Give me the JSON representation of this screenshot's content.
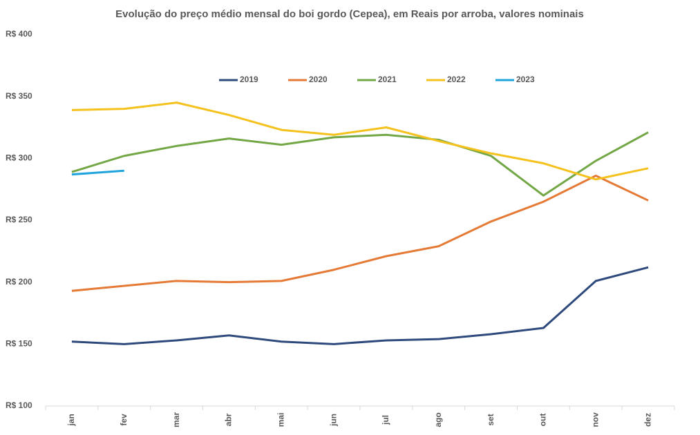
{
  "chart_data": {
    "type": "line",
    "title": "Evolução do preço médio mensal do boi gordo (Cepea), em Reais por arroba, valores nominais",
    "categories": [
      "jan",
      "fev",
      "mar",
      "abr",
      "mai",
      "jun",
      "jul",
      "ago",
      "set",
      "out",
      "nov",
      "dez"
    ],
    "series": [
      {
        "name": "2019",
        "color": "#2e4a7d",
        "values": [
          152,
          150,
          153,
          157,
          152,
          150,
          153,
          154,
          158,
          163,
          201,
          212
        ]
      },
      {
        "name": "2020",
        "color": "#e47a35",
        "values": [
          193,
          197,
          201,
          200,
          201,
          210,
          221,
          229,
          249,
          265,
          286,
          266
        ]
      },
      {
        "name": "2021",
        "color": "#73a745",
        "values": [
          289,
          302,
          310,
          316,
          311,
          317,
          319,
          315,
          302,
          270,
          298,
          321
        ]
      },
      {
        "name": "2022",
        "color": "#f5c11c",
        "values": [
          339,
          340,
          345,
          335,
          323,
          319,
          325,
          314,
          304,
          296,
          283,
          292
        ]
      },
      {
        "name": "2023",
        "color": "#1fa3dc",
        "values": [
          287,
          290,
          null,
          null,
          null,
          null,
          null,
          null,
          null,
          null,
          null,
          null
        ]
      }
    ],
    "ylim": [
      100,
      400
    ],
    "yticks": [
      {
        "value": 100,
        "label": "R$ 100"
      },
      {
        "value": 150,
        "label": "R$ 150"
      },
      {
        "value": 200,
        "label": "R$ 200"
      },
      {
        "value": 250,
        "label": "R$ 250"
      },
      {
        "value": 300,
        "label": "R$ 300"
      },
      {
        "value": 350,
        "label": "R$ 350"
      },
      {
        "value": 400,
        "label": "R$ 400"
      }
    ],
    "grid": false,
    "legend": "top"
  }
}
